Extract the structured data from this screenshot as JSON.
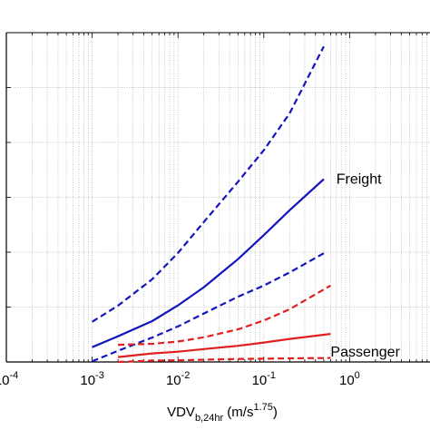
{
  "chart_data": {
    "type": "line",
    "xscale": "log",
    "xlim": [
      0.0001,
      10
    ],
    "ylim": [
      0,
      1
    ],
    "grid": true,
    "title": "",
    "ylabel": "",
    "xlabel": {
      "main": "VDV",
      "sub": "b,24hr",
      "unit_prefix": " (m/s",
      "unit_exp": "1.75",
      "unit_suffix": ")"
    },
    "x_ticks": [
      {
        "base": "10",
        "exp": "-4",
        "value": 0.0001
      },
      {
        "base": "10",
        "exp": "-3",
        "value": 0.001
      },
      {
        "base": "10",
        "exp": "-2",
        "value": 0.01
      },
      {
        "base": "10",
        "exp": "-1",
        "value": 0.1
      },
      {
        "base": "10",
        "exp": "0",
        "value": 1
      }
    ],
    "annotations": [
      {
        "text": "Freight",
        "x": 0.7,
        "y": 0.555
      },
      {
        "text": "Passenger",
        "x": 0.6,
        "y": 0.03
      }
    ],
    "series": [
      {
        "color": "#1515c0",
        "style": "solid",
        "x": [
          0.001,
          0.002,
          0.005,
          0.01,
          0.02,
          0.05,
          0.1,
          0.2,
          0.5
        ],
        "y": [
          0.045,
          0.078,
          0.124,
          0.172,
          0.227,
          0.312,
          0.385,
          0.461,
          0.555
        ]
      },
      {
        "color": "#1515c0",
        "style": "dashed",
        "x": [
          0.001,
          0.002,
          0.005,
          0.01,
          0.02,
          0.05,
          0.1,
          0.2,
          0.5
        ],
        "y": [
          0.122,
          0.171,
          0.251,
          0.331,
          0.425,
          0.547,
          0.643,
          0.755,
          0.958
        ]
      },
      {
        "color": "#1515c0",
        "style": "dashed",
        "x": [
          0.001,
          0.002,
          0.005,
          0.01,
          0.02,
          0.05,
          0.1,
          0.2,
          0.5
        ],
        "y": [
          0.002,
          0.034,
          0.074,
          0.108,
          0.147,
          0.198,
          0.232,
          0.272,
          0.33
        ]
      },
      {
        "color": "#e02020",
        "style": "solid",
        "x": [
          0.002,
          0.005,
          0.01,
          0.02,
          0.05,
          0.1,
          0.2,
          0.6
        ],
        "y": [
          0.015,
          0.026,
          0.031,
          0.039,
          0.049,
          0.059,
          0.07,
          0.085
        ]
      },
      {
        "color": "#e02020",
        "style": "dashed",
        "x": [
          0.002,
          0.005,
          0.01,
          0.02,
          0.05,
          0.1,
          0.2,
          0.6
        ],
        "y": [
          0.052,
          0.055,
          0.062,
          0.075,
          0.099,
          0.126,
          0.16,
          0.232
        ]
      },
      {
        "color": "#e02020",
        "style": "dashed",
        "x": [
          0.002,
          0.005,
          0.01,
          0.02,
          0.05,
          0.1,
          0.2,
          0.6
        ],
        "y": [
          0.0,
          0.004,
          0.005,
          0.007,
          0.009,
          0.01,
          0.011,
          0.012
        ]
      }
    ]
  }
}
